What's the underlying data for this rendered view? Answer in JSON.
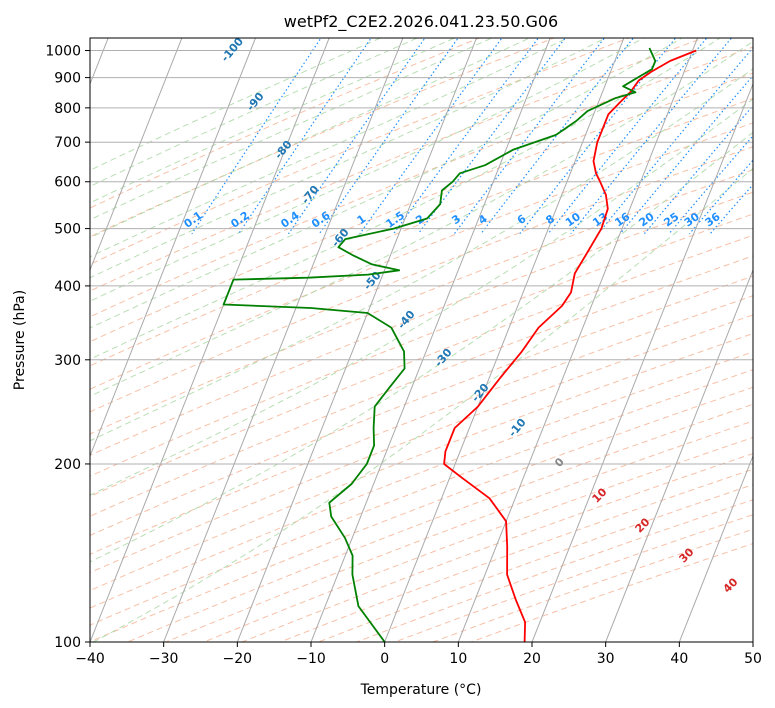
{
  "chart_data": {
    "type": "line",
    "title": "wetPf2_C2E2.2026.041.23.50.G06",
    "xlabel": "Temperature (°C)",
    "ylabel": "Pressure (hPa)",
    "xlim": [
      -40,
      50
    ],
    "ylim": [
      1050,
      100
    ],
    "y_scale": "log",
    "grid": true,
    "x_ticks": [
      -40,
      -30,
      -20,
      -10,
      0,
      10,
      20,
      30,
      40,
      50
    ],
    "x_tick_labels": [
      "−40",
      "−30",
      "−20",
      "−10",
      "0",
      "10",
      "20",
      "30",
      "40",
      "50"
    ],
    "y_ticks": [
      1000,
      900,
      800,
      700,
      600,
      500,
      400,
      300,
      200,
      100
    ],
    "y_tick_labels": [
      "1000",
      "900",
      "800",
      "700",
      "600",
      "500",
      "400",
      "300",
      "200",
      "100"
    ],
    "series": [
      {
        "color": "#ff0000",
        "points": [
          [
            1000,
            10.5
          ],
          [
            960,
            7.5
          ],
          [
            920,
            5.5
          ],
          [
            890,
            4.3
          ],
          [
            850,
            3.8
          ],
          [
            820,
            3.0
          ],
          [
            780,
            2.0
          ],
          [
            740,
            2.0
          ],
          [
            700,
            2.0
          ],
          [
            650,
            2.5
          ],
          [
            620,
            3.5
          ],
          [
            600,
            4.5
          ],
          [
            570,
            6.0
          ],
          [
            540,
            7.0
          ],
          [
            500,
            7.2
          ],
          [
            450,
            6.5
          ],
          [
            420,
            6.0
          ],
          [
            390,
            6.5
          ],
          [
            370,
            6.0
          ],
          [
            340,
            4.0
          ],
          [
            310,
            3.0
          ],
          [
            280,
            1.5
          ],
          [
            250,
            0.0
          ],
          [
            230,
            -2.0
          ],
          [
            210,
            -2.0
          ],
          [
            200,
            -1.5
          ],
          [
            190,
            1.5
          ],
          [
            175,
            6.5
          ],
          [
            160,
            10.0
          ],
          [
            145,
            11.5
          ],
          [
            130,
            13.0
          ],
          [
            118,
            15.5
          ],
          [
            108,
            18.0
          ],
          [
            100,
            19.0
          ]
        ]
      },
      {
        "color": "#008000",
        "points": [
          [
            1010,
            4.0
          ],
          [
            960,
            5.5
          ],
          [
            930,
            5.5
          ],
          [
            900,
            4.0
          ],
          [
            870,
            2.5
          ],
          [
            850,
            4.5
          ],
          [
            830,
            2.0
          ],
          [
            790,
            -1.0
          ],
          [
            760,
            -2.0
          ],
          [
            720,
            -4.0
          ],
          [
            680,
            -9.0
          ],
          [
            640,
            -12.0
          ],
          [
            620,
            -15.0
          ],
          [
            600,
            -15.5
          ],
          [
            580,
            -16.5
          ],
          [
            550,
            -16.0
          ],
          [
            520,
            -17.0
          ],
          [
            500,
            -21.0
          ],
          [
            480,
            -27.0
          ],
          [
            465,
            -27.5
          ],
          [
            450,
            -25.0
          ],
          [
            435,
            -22.0
          ],
          [
            425,
            -18.0
          ],
          [
            418,
            -22.0
          ],
          [
            413,
            -30.0
          ],
          [
            410,
            -40.0
          ],
          [
            372,
            -40.0
          ],
          [
            367,
            -28.0
          ],
          [
            360,
            -20.0
          ],
          [
            340,
            -16.0
          ],
          [
            310,
            -13.0
          ],
          [
            290,
            -12.0
          ],
          [
            270,
            -13.0
          ],
          [
            250,
            -14.0
          ],
          [
            230,
            -13.0
          ],
          [
            215,
            -12.0
          ],
          [
            200,
            -12.0
          ],
          [
            185,
            -13.0
          ],
          [
            172,
            -15.0
          ],
          [
            163,
            -14.0
          ],
          [
            150,
            -11.0
          ],
          [
            140,
            -9.0
          ],
          [
            130,
            -8.0
          ],
          [
            115,
            -5.5
          ],
          [
            100,
            0.0
          ]
        ]
      }
    ],
    "mixing_ratio_labels": [
      "0.1",
      "0.2",
      "0.4",
      "0.6",
      "1",
      "1.5",
      "2",
      "3",
      "4",
      "6",
      "8",
      "10",
      "13",
      "16",
      "20",
      "25",
      "30",
      "36"
    ],
    "moist_adiabat_labels": [
      "-100",
      "-90",
      "-80",
      "-70",
      "-60",
      "-50",
      "-40",
      "-30",
      "-20",
      "-10"
    ],
    "dry_adiabat_labels": [
      "0",
      "10",
      "20",
      "30",
      "40"
    ],
    "colors": {
      "temperature": "#ff0000",
      "dewpoint": "#008000",
      "isotherm": "#aaaaaa",
      "dry_adiabat": "#f4a582",
      "moist_adiabat": "#a6d6a0",
      "mixing_ratio": "#1f8fff",
      "moist_label": "#1f77b4",
      "dry_label": "#d62728"
    }
  }
}
